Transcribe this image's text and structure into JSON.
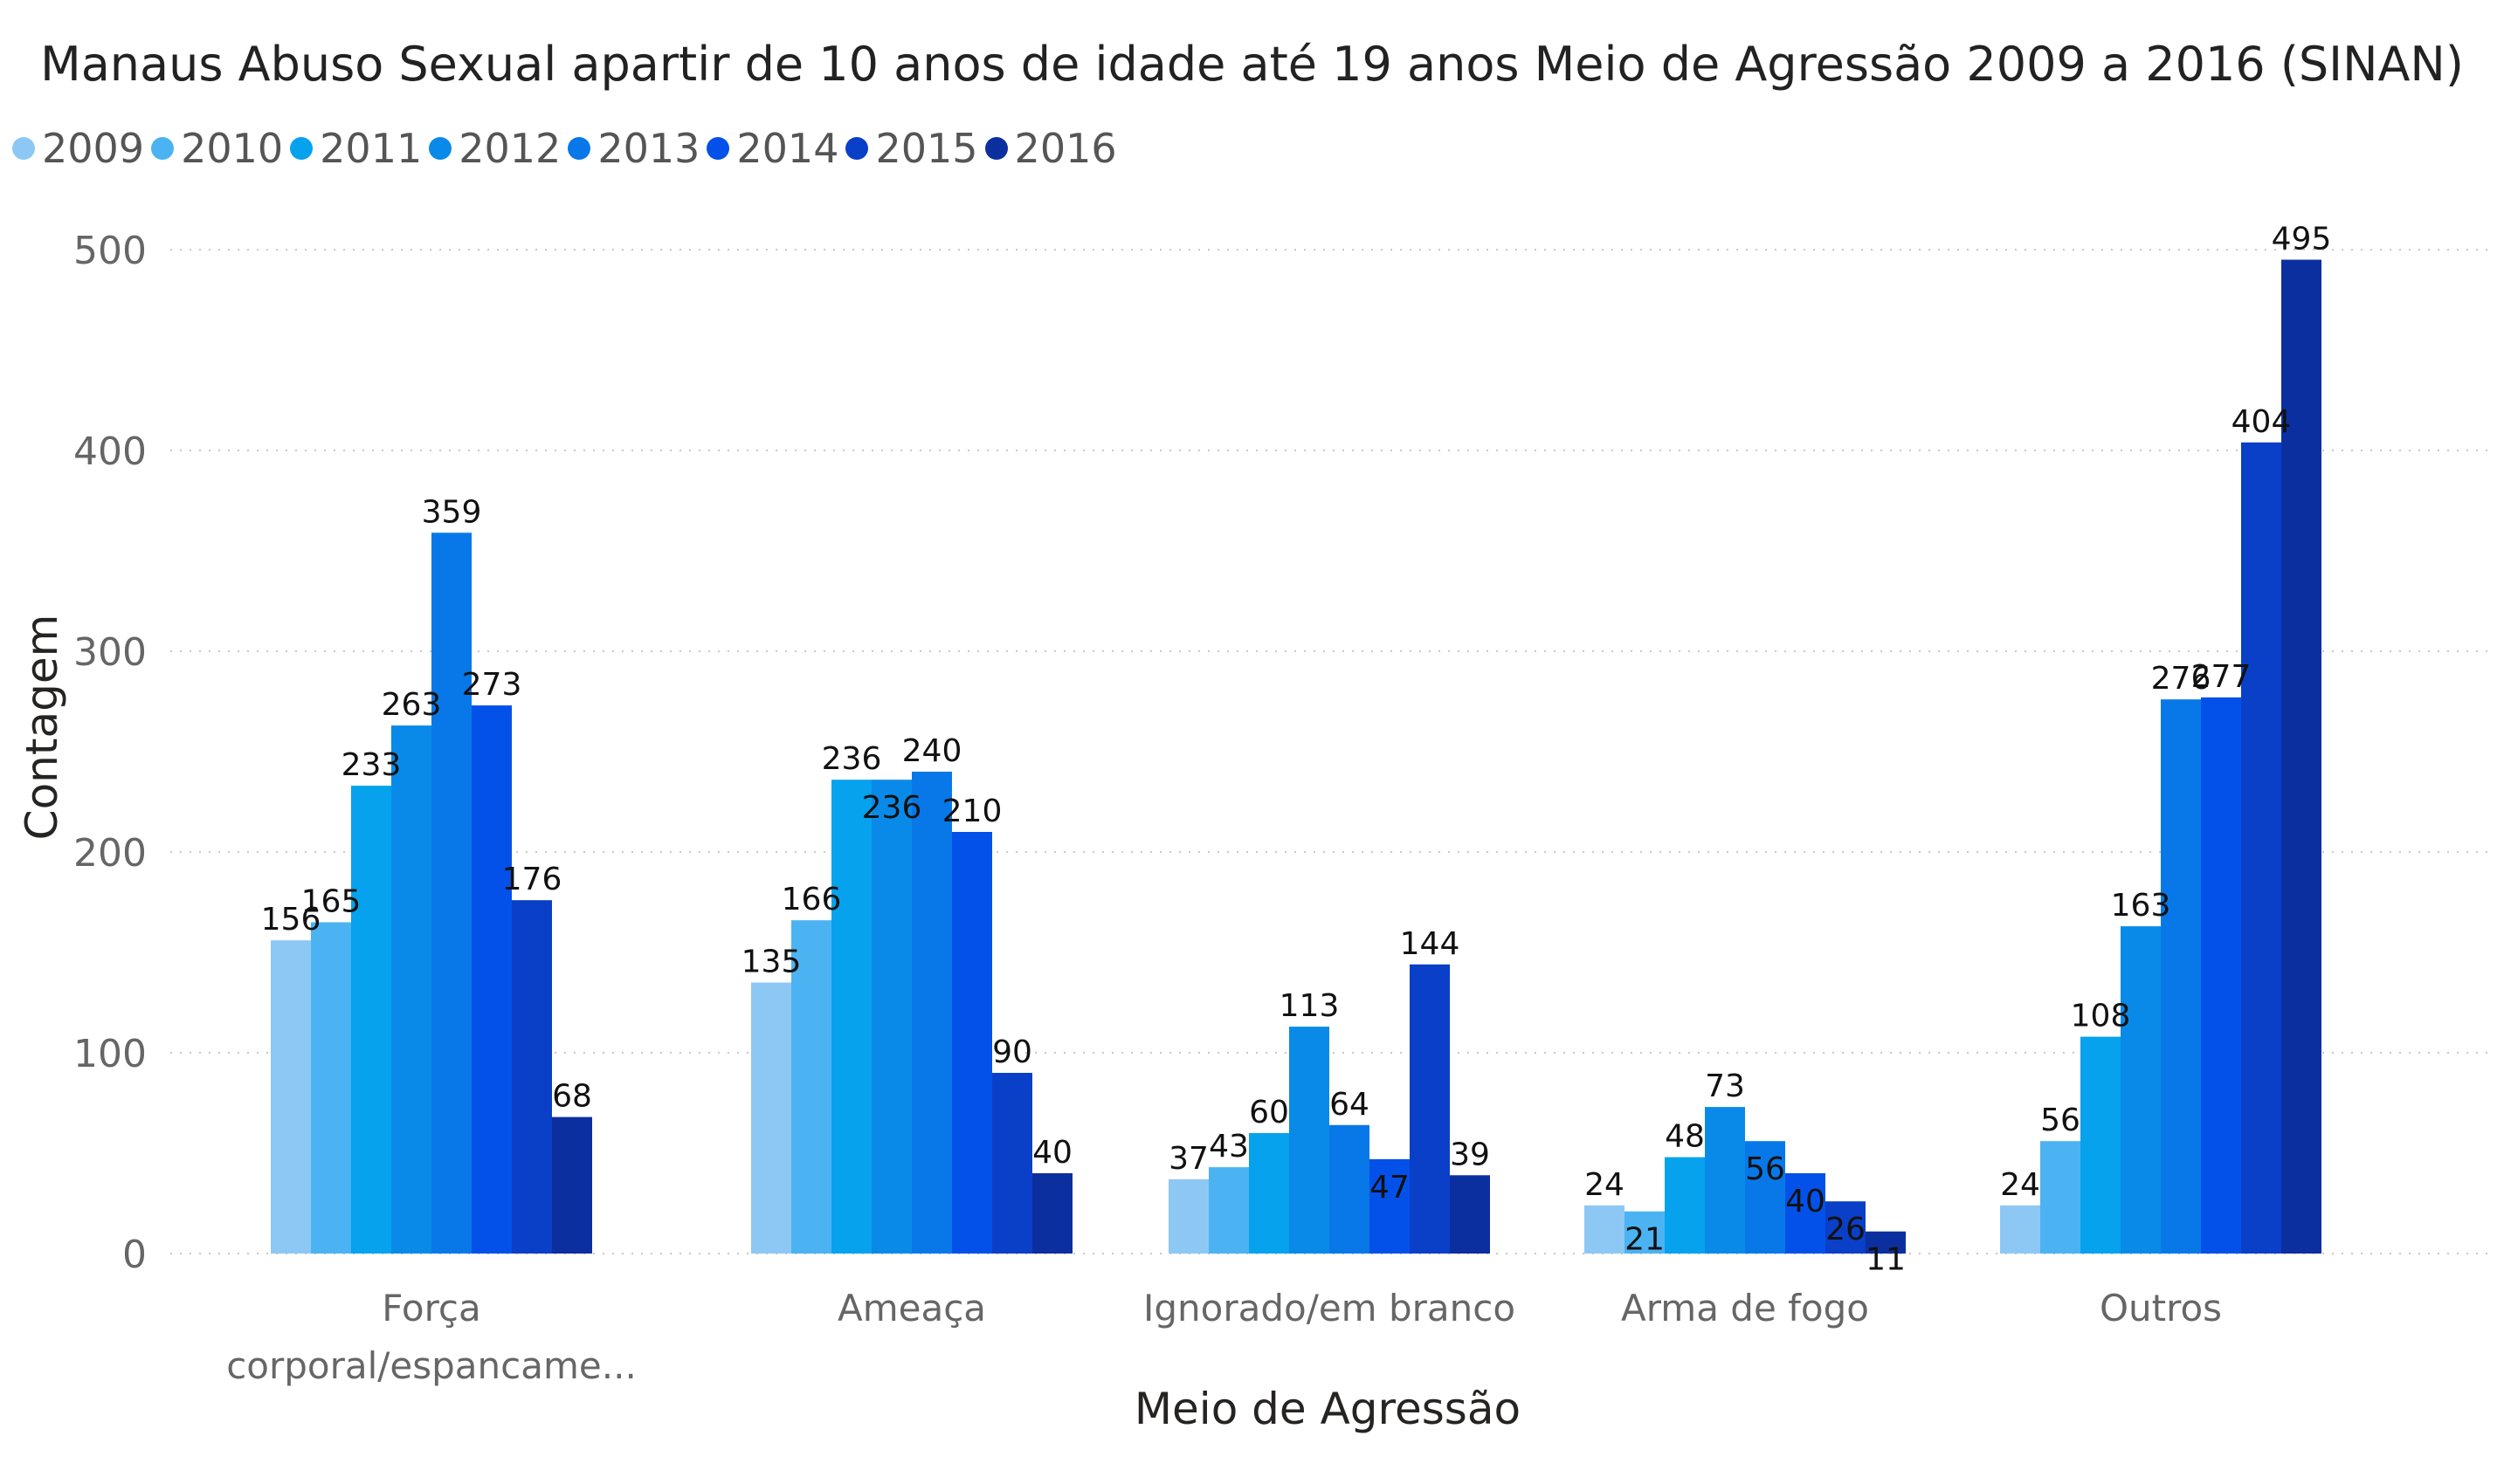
{
  "chart_data": {
    "type": "bar",
    "title": "Manaus Abuso Sexual apartir de 10 anos de idade até 19 anos Meio de Agressão 2009 a 2016 (SINAN)",
    "xlabel": "Meio de Agressão",
    "ylabel": "Contagem",
    "ylim": [
      0,
      500
    ],
    "yticks": [
      0,
      100,
      200,
      300,
      400,
      500
    ],
    "grid": "horizontal dotted",
    "legend_position": "top-left",
    "categories": [
      "Força corporal/espancame...",
      "Ameaça",
      "Ignorado/em branco",
      "Arma de fogo",
      "Outros"
    ],
    "series": [
      {
        "name": "2009",
        "color": "#8DC8F5",
        "values": [
          156,
          135,
          37,
          24,
          24
        ]
      },
      {
        "name": "2010",
        "color": "#4BB3F2",
        "values": [
          165,
          166,
          43,
          21,
          56
        ]
      },
      {
        "name": "2011",
        "color": "#06A2ED",
        "values": [
          233,
          236,
          60,
          48,
          108
        ]
      },
      {
        "name": "2012",
        "color": "#0A8AE8",
        "values": [
          263,
          236,
          113,
          73,
          163
        ]
      },
      {
        "name": "2013",
        "color": "#0878E8",
        "values": [
          359,
          240,
          64,
          56,
          276
        ]
      },
      {
        "name": "2014",
        "color": "#0451EA",
        "values": [
          273,
          210,
          47,
          40,
          277
        ]
      },
      {
        "name": "2015",
        "color": "#0A3FC7",
        "values": [
          176,
          90,
          144,
          26,
          404
        ]
      },
      {
        "name": "2016",
        "color": "#0C2FA0",
        "values": [
          68,
          40,
          39,
          11,
          495
        ]
      }
    ]
  }
}
